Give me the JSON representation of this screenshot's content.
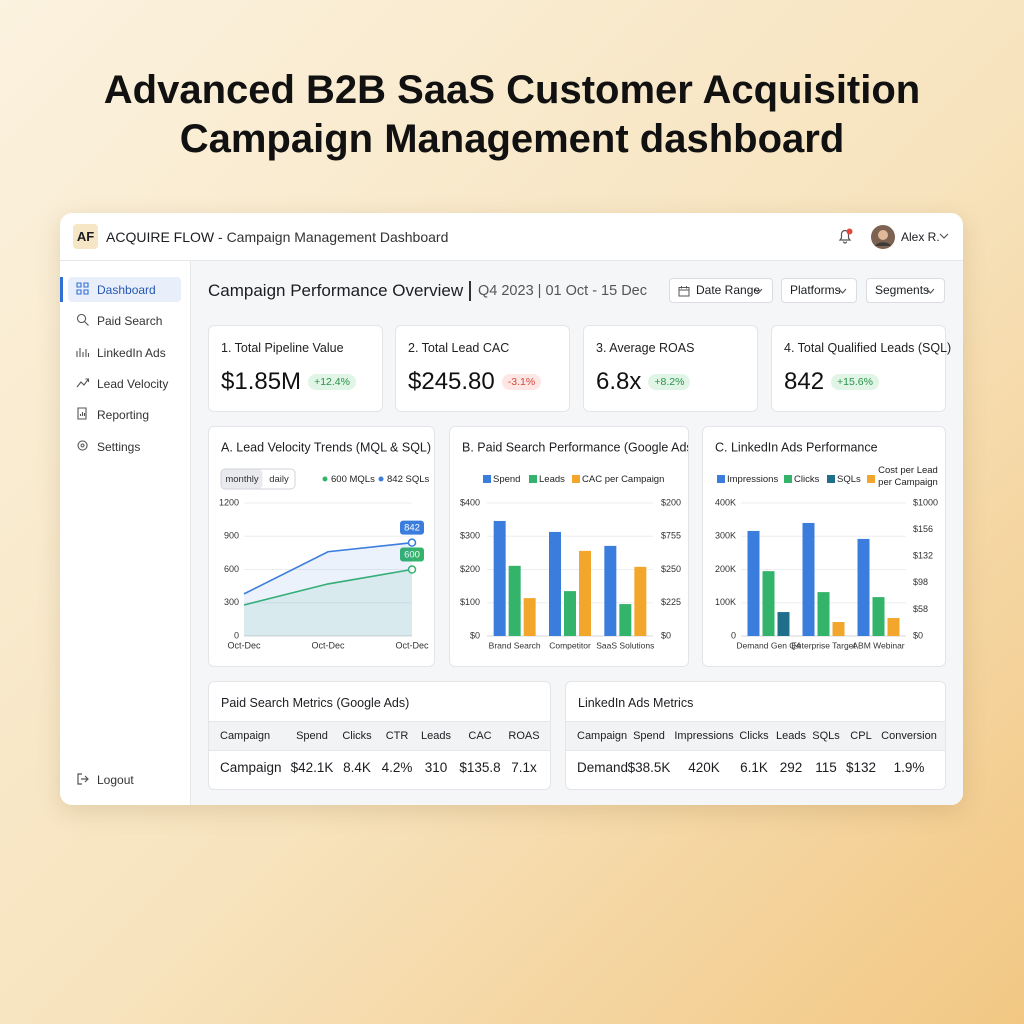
{
  "headline": [
    "Advanced B2B SaaS Customer Acquisition",
    "Campaign Management dashboard"
  ],
  "topbar": {
    "logo": "AF",
    "brand": "ACQUIRE FLOW",
    "subtitle": "- Campaign Management Dashboard",
    "user": "Alex R."
  },
  "sidebar": {
    "items": [
      "Dashboard",
      "Paid Search",
      "LinkedIn Ads",
      "Lead Velocity",
      "Reporting",
      "Settings"
    ],
    "logout": "Logout"
  },
  "header": {
    "title": "Campaign Performance Overview",
    "period": "Q4 2023 | 01 Oct - 15 Dec",
    "filters": [
      "Date Range",
      "Platforms",
      "Segments"
    ]
  },
  "kpis": [
    {
      "label": "1. Total Pipeline Value",
      "value": "$1.85M",
      "change": "+12.4%"
    },
    {
      "label": "2. Total Lead CAC",
      "value": "$245.80",
      "change": "-3.1%"
    },
    {
      "label": "3. Average ROAS",
      "value": "6.8x",
      "change": "+8.2%"
    },
    {
      "label": "4. Total Qualified Leads (SQL)",
      "value": "842",
      "change": "+15.6%"
    }
  ],
  "chart_data": [
    {
      "type": "line",
      "title": "A. Lead Velocity Trends (MQL & SQL)",
      "toggle": [
        "monthly",
        "daily"
      ],
      "categories": [
        "Oct-Dec",
        "Oct-Dec",
        "Oct-Dec"
      ],
      "series": [
        {
          "name": "600 MQLs",
          "color": "#34b36b",
          "values": [
            280,
            470,
            600
          ]
        },
        {
          "name": "842 SQLs",
          "color": "#3b7ddd",
          "values": [
            380,
            760,
            842
          ]
        }
      ],
      "ylim": [
        0,
        1200
      ],
      "yticks": [
        0,
        300,
        600,
        900,
        1200
      ],
      "grid": true,
      "legend": "top-right"
    },
    {
      "type": "bar",
      "title": "B. Paid Search Performance (Google Ads)",
      "categories": [
        "Brand Search",
        "Competitor",
        "SaaS Solutions"
      ],
      "series": [
        {
          "name": "Spend",
          "color": "#3b7ddd",
          "values": [
            346,
            313,
            271
          ]
        },
        {
          "name": "Leads",
          "color": "#34b36b",
          "values": [
            211,
            135,
            96
          ]
        },
        {
          "name": "CAC per Campaign",
          "color": "#f2a62b",
          "values": [
            114,
            256,
            208
          ]
        }
      ],
      "ylim": [
        0,
        400
      ],
      "yticks": [
        {
          "value": 0,
          "label": "$0"
        },
        {
          "value": 100,
          "label": "$100"
        },
        {
          "value": 200,
          "label": "$200"
        },
        {
          "value": 300,
          "label": "$300"
        },
        {
          "value": 400,
          "label": "$400"
        }
      ],
      "y2_labels": [
        "$0",
        "$225",
        "$250",
        "$755",
        "$200"
      ],
      "grid": true,
      "legend": "top"
    },
    {
      "type": "bar",
      "title": "C. LinkedIn Ads Performance",
      "categories": [
        "Demand Gen Q4",
        "Enterprise Target",
        "ABM Webinar"
      ],
      "series": [
        {
          "name": "Impressions",
          "color": "#3b7ddd",
          "values": [
            316000,
            340000,
            292000
          ]
        },
        {
          "name": "Clicks",
          "color": "#34b36b",
          "values": [
            195000,
            132000,
            117000
          ]
        },
        {
          "name": "SQLs",
          "color": "#1f6f8b",
          "values": [
            72000,
            null,
            null
          ]
        },
        {
          "name": "Cost per Lead per Campaign",
          "color": "#f2a62b",
          "values": [
            null,
            42000,
            54000
          ]
        }
      ],
      "ylim": [
        0,
        400000
      ],
      "yticks": [
        0,
        {
          "value": 100000,
          "label": "100K"
        },
        {
          "value": 200000,
          "label": "200K"
        },
        {
          "value": 300000,
          "label": "300K"
        },
        {
          "value": 400000,
          "label": "400K"
        }
      ],
      "y2_labels": [
        "$0",
        "$58",
        "$98",
        "$132",
        "$156",
        "$1000"
      ],
      "grid": true,
      "legend": "top"
    }
  ],
  "tables": [
    {
      "title": "Paid Search Metrics (Google Ads)",
      "columns": [
        "Campaign",
        "Spend",
        "Clicks",
        "CTR",
        "Leads",
        "CAC",
        "ROAS"
      ],
      "rows": [
        [
          "Campaign",
          "$42.1K",
          "8.4K",
          "4.2%",
          "310",
          "$135.8",
          "7.1x"
        ]
      ]
    },
    {
      "title": "LinkedIn Ads Metrics",
      "columns": [
        "Campaign",
        "Spend",
        "Impressions",
        "Clicks",
        "Leads",
        "SQLs",
        "CPL",
        "Conversion"
      ],
      "rows": [
        [
          "Demand",
          "$38.5K",
          "420K",
          "6.1K",
          "292",
          "115",
          "$132",
          "1.9%"
        ]
      ]
    }
  ]
}
